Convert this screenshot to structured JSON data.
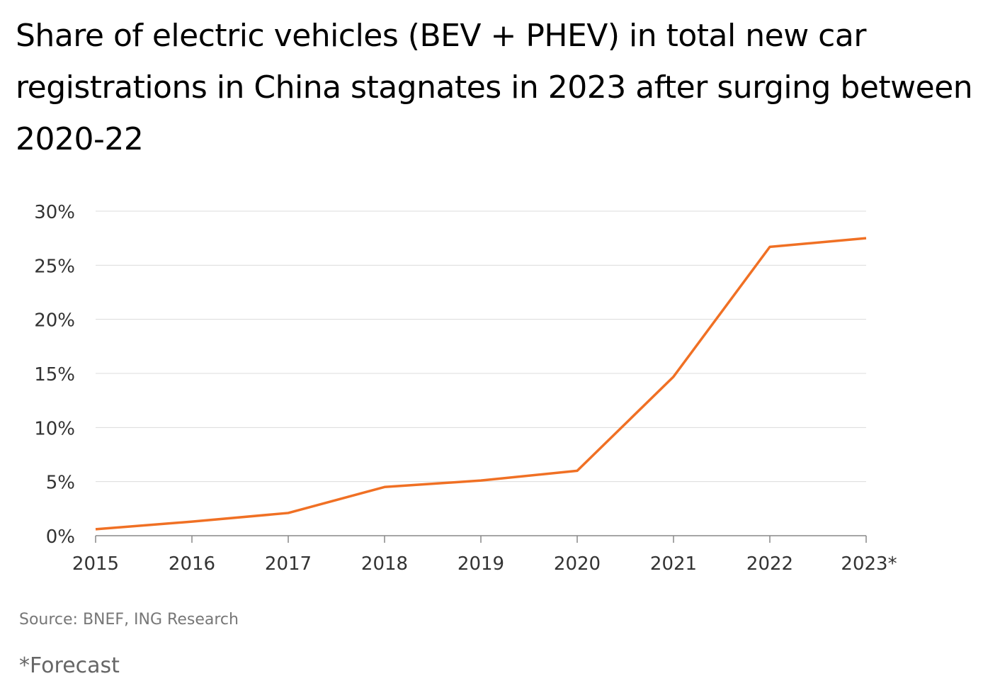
{
  "chart_data": {
    "type": "line",
    "title": "Share of electric vehicles (BEV + PHEV) in total new car registrations in China stagnates in 2023 after surging between 2020-22",
    "xlabel": "",
    "ylabel": "",
    "categories": [
      "2015",
      "2016",
      "2017",
      "2018",
      "2019",
      "2020",
      "2021",
      "2022",
      "2023*"
    ],
    "series": [
      {
        "values": [
          0.6,
          1.3,
          2.1,
          4.5,
          5.1,
          6.0,
          14.7,
          26.7,
          27.5
        ],
        "color": "#F07024"
      }
    ],
    "ylim": [
      0,
      30
    ],
    "yticks": [
      0,
      5,
      10,
      15,
      20,
      25,
      30
    ],
    "ytick_labels": [
      "0%",
      "5%",
      "10%",
      "15%",
      "20%",
      "25%",
      "30%"
    ],
    "grid": true,
    "legend": "none"
  },
  "source": "Source: BNEF, ING Research",
  "note": "*Forecast"
}
